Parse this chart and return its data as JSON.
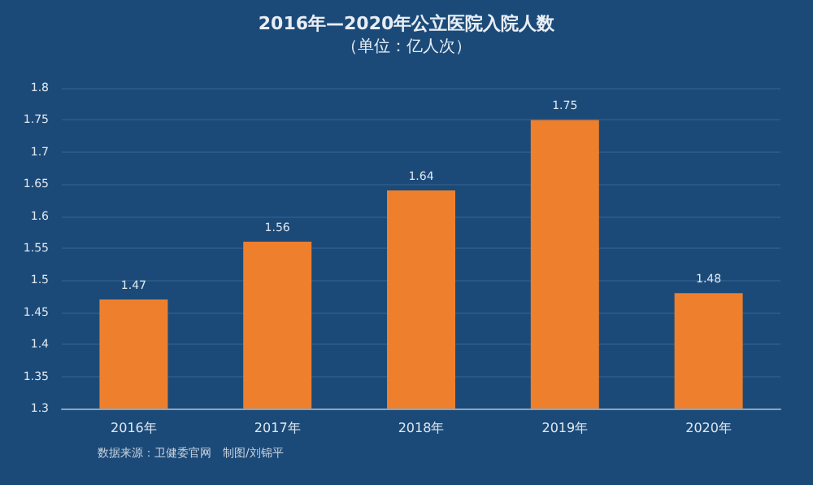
{
  "chart_data": {
    "type": "bar",
    "title": "2016年—2020年公立医院入院人数",
    "subtitle": "（单位：亿人次）",
    "categories": [
      "2016年",
      "2017年",
      "2018年",
      "2019年",
      "2020年"
    ],
    "values": [
      1.47,
      1.56,
      1.64,
      1.75,
      1.48
    ],
    "color": "#ee7f2d",
    "ylim": [
      1.3,
      1.8
    ],
    "yticks": [
      1.3,
      1.35,
      1.4,
      1.45,
      1.5,
      1.55,
      1.6,
      1.65,
      1.7,
      1.75,
      1.8
    ],
    "grid": "y",
    "data_labels": true,
    "annotations": [
      "数据来源：卫健委官网　制图/刘锦平"
    ]
  }
}
